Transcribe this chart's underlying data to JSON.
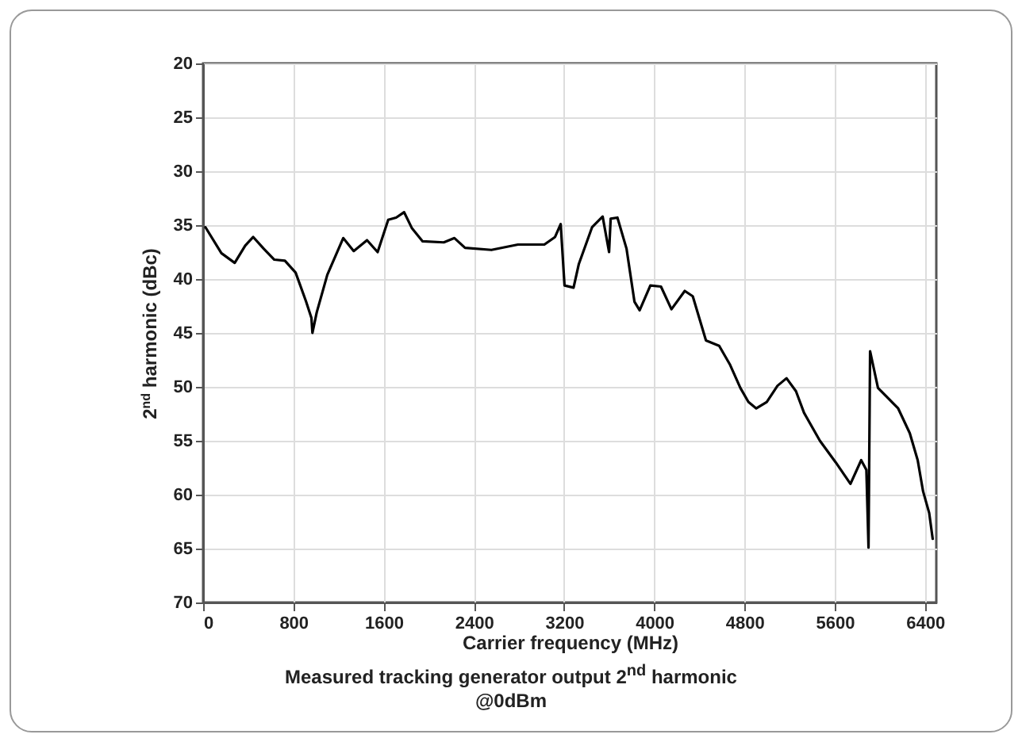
{
  "chart_data": {
    "type": "line",
    "xlabel": "Carrier frequency (MHz)",
    "ylabel": "2$^{nd}$ harmonic (dBc)",
    "annotations": [
      "Measured tracking generator output 2$^{nd}$ harmonic",
      "@0dBm"
    ],
    "x": [
      21,
      162,
      280,
      373,
      444,
      538,
      631,
      725,
      820,
      913,
      960,
      969,
      1007,
      1101,
      1242,
      1335,
      1453,
      1547,
      1641,
      1711,
      1782,
      1852,
      1946,
      2134,
      2228,
      2322,
      2556,
      2791,
      3025,
      3120,
      3170,
      3204,
      3284,
      3331,
      3448,
      3542,
      3599,
      3613,
      3673,
      3754,
      3824,
      3870,
      3965,
      4059,
      4152,
      4270,
      4341,
      4458,
      4575,
      4669,
      4763,
      4834,
      4904,
      4997,
      5092,
      5172,
      5256,
      5327,
      5468,
      5608,
      5739,
      5834,
      5880,
      5899,
      5913,
      5983,
      6077,
      6162,
      6265,
      6335,
      6383,
      6437,
      6468
    ],
    "series": [
      {
        "color": "#000000",
        "values": [
          35.2,
          37.6,
          38.5,
          36.9,
          36.1,
          37.2,
          38.2,
          38.3,
          39.4,
          42.1,
          43.6,
          45.0,
          43.1,
          39.6,
          36.2,
          37.4,
          36.4,
          37.5,
          34.5,
          34.3,
          33.8,
          35.3,
          36.5,
          36.6,
          36.2,
          37.1,
          37.3,
          36.8,
          36.8,
          36.1,
          34.9,
          40.6,
          40.8,
          38.6,
          35.2,
          34.2,
          37.5,
          34.4,
          34.3,
          37.2,
          42.1,
          42.9,
          40.6,
          40.7,
          42.8,
          41.1,
          41.6,
          45.7,
          46.2,
          47.9,
          50.1,
          51.4,
          52.0,
          51.4,
          49.9,
          49.2,
          50.4,
          52.4,
          55.0,
          57.0,
          59.0,
          56.8,
          57.7,
          64.9,
          46.7,
          50.1,
          51.1,
          52.0,
          54.3,
          56.8,
          59.7,
          61.7,
          64.1
        ]
      }
    ],
    "xlim": [
      0,
      6500
    ],
    "xticks": [
      0,
      800,
      1600,
      2400,
      3200,
      4000,
      4800,
      5600,
      6400
    ],
    "ylim": [
      70,
      20
    ],
    "yticks": [
      20,
      25,
      30,
      35,
      40,
      45,
      50,
      55,
      60,
      65,
      70
    ],
    "grid": true,
    "legend": false,
    "marker": "none",
    "line_style": "solid"
  }
}
